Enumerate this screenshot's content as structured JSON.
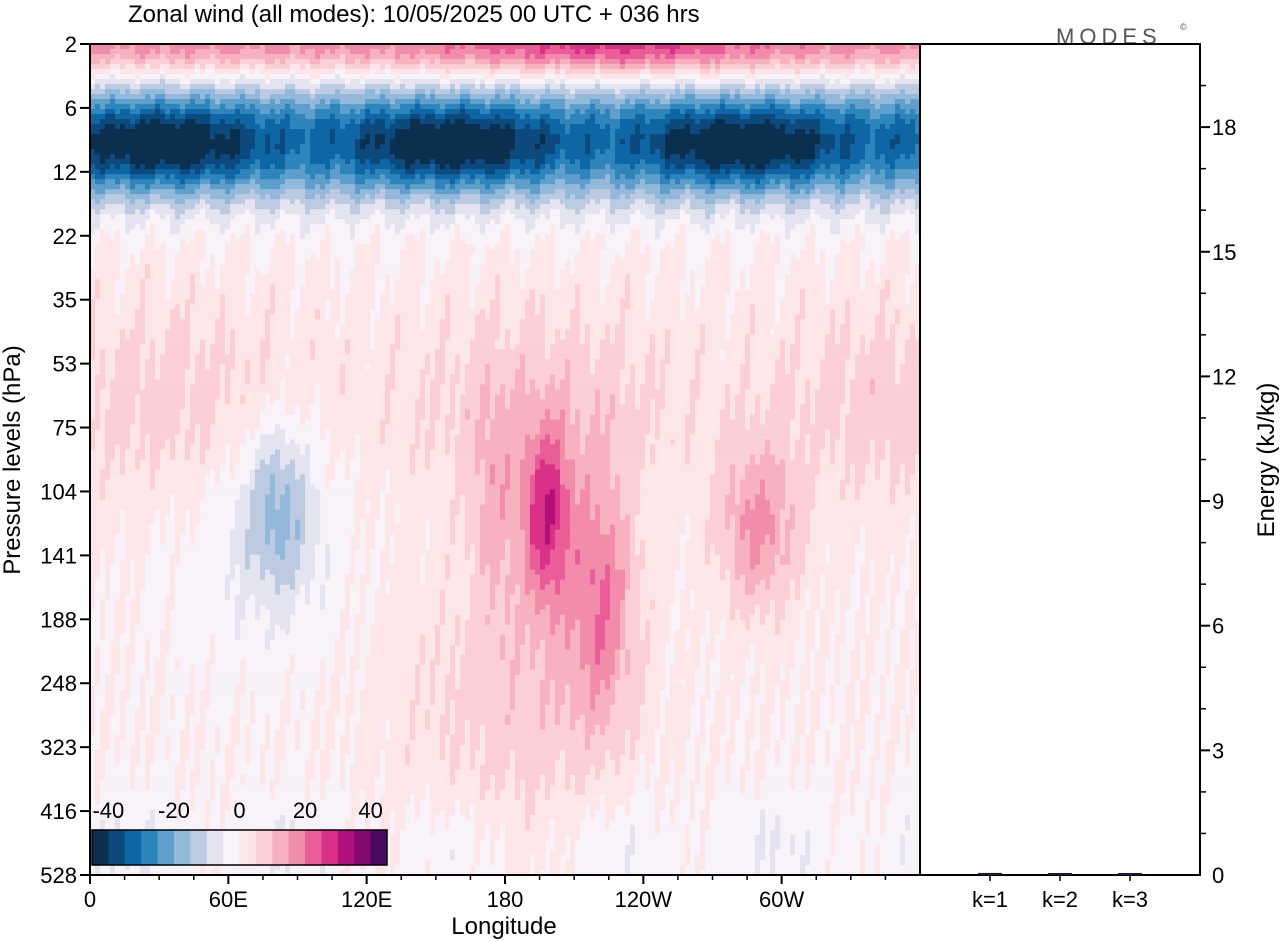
{
  "header": {
    "title": "Zonal wind (all modes):  10/05/2025  00 UTC  + 036 hrs",
    "logo": "MODES",
    "logo_mark": "©"
  },
  "chart_data": [
    {
      "type": "heatmap",
      "title": "Zonal wind (all modes):  10/05/2025  00 UTC  + 036 hrs",
      "xlabel": "Longitude",
      "ylabel": "Pressure levels (hPa)",
      "x_ticks": [
        "0",
        "60E",
        "120E",
        "180",
        "120W",
        "60W"
      ],
      "x_tick_values": [
        0,
        60,
        120,
        180,
        240,
        300
      ],
      "xlim": [
        0,
        360
      ],
      "y_ticks": [
        2,
        6,
        12,
        22,
        35,
        53,
        75,
        104,
        141,
        188,
        248,
        323,
        416,
        528
      ],
      "y_scale": "model levels (top 2 hPa, bottom 528 hPa)",
      "ylim": [
        528,
        2
      ],
      "colorbar": {
        "labels": [
          "-40",
          "-20",
          "0",
          "20",
          "40"
        ],
        "label_values": [
          -40,
          -20,
          0,
          20,
          40
        ],
        "colors": [
          "#0b2f4f",
          "#0c4a7d",
          "#0e66a5",
          "#2e85bb",
          "#5e9fcb",
          "#93b9da",
          "#bccbe2",
          "#e3e4ef",
          "#f7f3f8",
          "#fde6e8",
          "#fbcfd5",
          "#f8b2bf",
          "#f28cab",
          "#ea5d98",
          "#d93188",
          "#b10f7a",
          "#80086e",
          "#4a0a5e"
        ],
        "placement": "bottom-left"
      },
      "features": [
        {
          "label": "negative (easterly) band",
          "pressure_range_hPa": [
            6,
            22
          ],
          "peak_value": -40
        },
        {
          "label": "stratospheric westerlies near top",
          "pressure_range_hPa": [
            2,
            4
          ],
          "peak_value": 25
        },
        {
          "label": "upper-tropospheric westerly maxima",
          "longitude_range": [
            190,
            310
          ],
          "pressure_range_hPa": [
            75,
            248
          ],
          "peak_value": 28
        },
        {
          "label": "weak easterly lobe",
          "longitude_range": [
            40,
            90
          ],
          "pressure_range_hPa": [
            90,
            190
          ],
          "peak_value": -15
        }
      ]
    },
    {
      "type": "bar",
      "categories": [
        "k=1",
        "k=2",
        "k=3"
      ],
      "values": [
        0.05,
        0.02,
        0.01
      ],
      "ylabel": "Energy (kJ/kg)",
      "y_ticks": [
        0,
        3,
        6,
        9,
        12,
        15,
        18
      ],
      "ylim": [
        0,
        20
      ]
    }
  ]
}
